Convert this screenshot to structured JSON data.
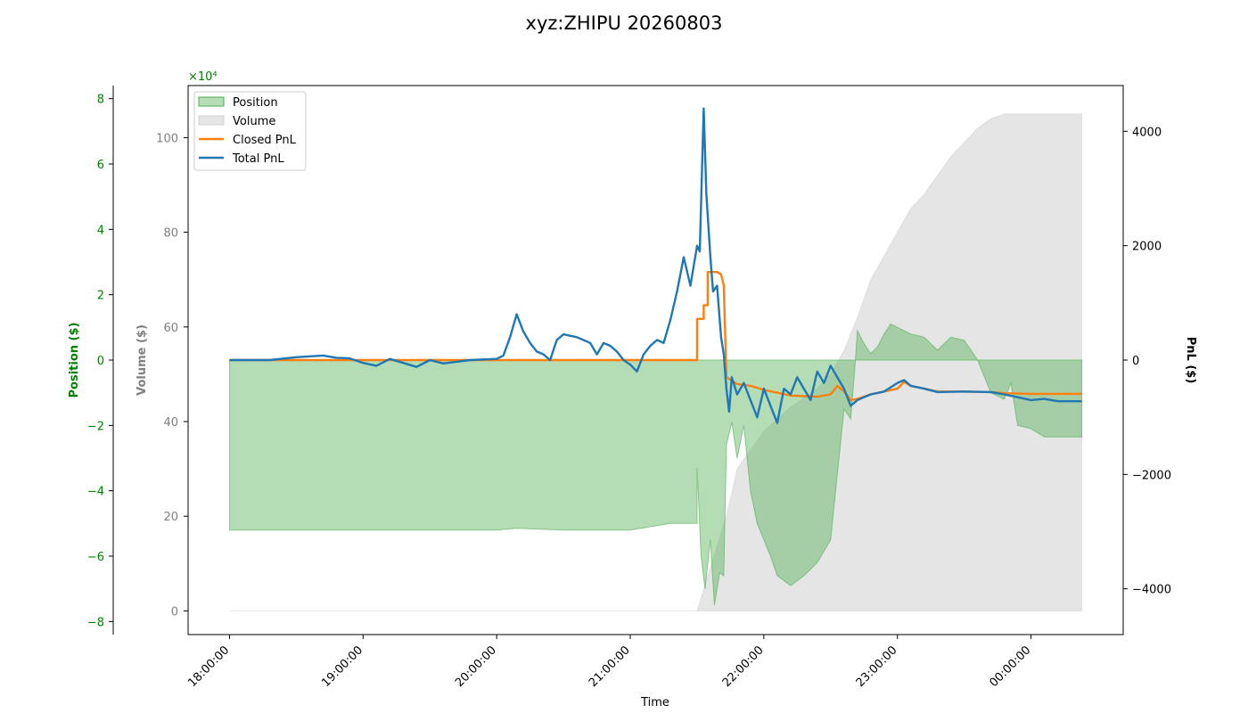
{
  "chart_data": {
    "type": "area",
    "title": "xyz:ZHIPU 20260803",
    "xlabel": "Time",
    "x_ticks": [
      "18:00:00",
      "19:00:00",
      "20:00:00",
      "21:00:00",
      "22:00:00",
      "23:00:00",
      "00:00:00"
    ],
    "x_range_hours": [
      17.69,
      24.69
    ],
    "grid": false,
    "legend_position": "top-left",
    "axes": {
      "position": {
        "label": "Position ($)",
        "color": "#008000",
        "exponent_label": "×10⁴",
        "scale": 10000,
        "range": [
          -8.4,
          8.4
        ],
        "ticks": [
          -8,
          -6,
          -4,
          -2,
          0,
          2,
          4,
          6,
          8
        ]
      },
      "volume": {
        "label": "Volume ($)",
        "color": "#808080",
        "range": [
          -5,
          111
        ],
        "ticks": [
          0,
          20,
          40,
          60,
          80,
          100
        ]
      },
      "pnl": {
        "label": "PnL ($)",
        "color": "#000000",
        "range": [
          -4800,
          4800
        ],
        "ticks": [
          -4000,
          -2000,
          0,
          2000,
          4000
        ]
      }
    },
    "series": [
      {
        "name": "Position",
        "kind": "area",
        "axis": "position",
        "color": "#4caf50",
        "points": [
          [
            18.0,
            -5.2
          ],
          [
            19.0,
            -5.2
          ],
          [
            20.0,
            -5.2
          ],
          [
            20.15,
            -5.15
          ],
          [
            20.5,
            -5.2
          ],
          [
            21.0,
            -5.2
          ],
          [
            21.3,
            -5.0
          ],
          [
            21.5,
            -5.0
          ],
          [
            21.5,
            -3.3
          ],
          [
            21.53,
            -6.0
          ],
          [
            21.56,
            -7.0
          ],
          [
            21.6,
            -5.5
          ],
          [
            21.63,
            -7.5
          ],
          [
            21.67,
            -6.5
          ],
          [
            21.7,
            -6.6
          ],
          [
            21.72,
            -2.6
          ],
          [
            21.76,
            -1.9
          ],
          [
            21.8,
            -3.0
          ],
          [
            21.85,
            -2.0
          ],
          [
            21.9,
            -4.0
          ],
          [
            21.95,
            -5.0
          ],
          [
            22.0,
            -5.5
          ],
          [
            22.05,
            -6.0
          ],
          [
            22.1,
            -6.6
          ],
          [
            22.2,
            -6.9
          ],
          [
            22.3,
            -6.6
          ],
          [
            22.4,
            -6.2
          ],
          [
            22.5,
            -5.5
          ],
          [
            22.55,
            -3.5
          ],
          [
            22.6,
            -1.5
          ],
          [
            22.65,
            -1.8
          ],
          [
            22.68,
            -0.3
          ],
          [
            22.7,
            0.9
          ],
          [
            22.75,
            0.5
          ],
          [
            22.8,
            0.2
          ],
          [
            22.85,
            0.4
          ],
          [
            22.9,
            0.8
          ],
          [
            22.95,
            1.1
          ],
          [
            23.0,
            1.0
          ],
          [
            23.1,
            0.8
          ],
          [
            23.2,
            0.7
          ],
          [
            23.3,
            0.3
          ],
          [
            23.4,
            0.7
          ],
          [
            23.5,
            0.6
          ],
          [
            23.6,
            0.0
          ],
          [
            23.7,
            -1.0
          ],
          [
            23.8,
            -1.2
          ],
          [
            23.85,
            -0.7
          ],
          [
            23.9,
            -2.0
          ],
          [
            24.0,
            -2.1
          ],
          [
            24.1,
            -2.35
          ],
          [
            24.38,
            -2.35
          ]
        ]
      },
      {
        "name": "Volume",
        "kind": "area",
        "axis": "volume",
        "color": "#d3d3d3",
        "points": [
          [
            18.0,
            0
          ],
          [
            21.5,
            0
          ],
          [
            21.72,
            20
          ],
          [
            21.8,
            30
          ],
          [
            22.0,
            38
          ],
          [
            22.2,
            43
          ],
          [
            22.4,
            47
          ],
          [
            22.5,
            50
          ],
          [
            22.6,
            55
          ],
          [
            22.7,
            62
          ],
          [
            22.8,
            70
          ],
          [
            22.9,
            75
          ],
          [
            23.0,
            80
          ],
          [
            23.1,
            85
          ],
          [
            23.2,
            88
          ],
          [
            23.3,
            92
          ],
          [
            23.4,
            96
          ],
          [
            23.5,
            99
          ],
          [
            23.6,
            102
          ],
          [
            23.7,
            104
          ],
          [
            23.8,
            105
          ],
          [
            24.38,
            105
          ]
        ]
      },
      {
        "name": "Closed PnL",
        "kind": "line",
        "axis": "pnl",
        "color": "#ff7f0e",
        "points": [
          [
            18.0,
            0
          ],
          [
            21.5,
            0
          ],
          [
            21.5,
            720
          ],
          [
            21.55,
            720
          ],
          [
            21.55,
            960
          ],
          [
            21.58,
            960
          ],
          [
            21.58,
            1540
          ],
          [
            21.65,
            1540
          ],
          [
            21.68,
            1500
          ],
          [
            21.7,
            1300
          ],
          [
            21.72,
            -300
          ],
          [
            21.8,
            -420
          ],
          [
            21.9,
            -450
          ],
          [
            22.0,
            -520
          ],
          [
            22.2,
            -620
          ],
          [
            22.4,
            -640
          ],
          [
            22.5,
            -600
          ],
          [
            22.55,
            -450
          ],
          [
            22.6,
            -550
          ],
          [
            22.65,
            -700
          ],
          [
            22.7,
            -680
          ],
          [
            22.8,
            -600
          ],
          [
            22.9,
            -550
          ],
          [
            23.0,
            -500
          ],
          [
            23.05,
            -380
          ],
          [
            23.1,
            -450
          ],
          [
            23.2,
            -500
          ],
          [
            23.3,
            -550
          ],
          [
            23.5,
            -550
          ],
          [
            23.7,
            -560
          ],
          [
            23.8,
            -580
          ],
          [
            24.0,
            -590
          ],
          [
            24.38,
            -590
          ]
        ]
      },
      {
        "name": "Total PnL",
        "kind": "line",
        "axis": "pnl",
        "color": "#1f77b4",
        "points": [
          [
            18.0,
            0
          ],
          [
            18.3,
            0
          ],
          [
            18.5,
            50
          ],
          [
            18.7,
            80
          ],
          [
            18.8,
            40
          ],
          [
            18.9,
            30
          ],
          [
            19.0,
            -50
          ],
          [
            19.1,
            -100
          ],
          [
            19.2,
            20
          ],
          [
            19.3,
            -50
          ],
          [
            19.4,
            -120
          ],
          [
            19.5,
            0
          ],
          [
            19.6,
            -60
          ],
          [
            19.8,
            0
          ],
          [
            20.0,
            20
          ],
          [
            20.05,
            80
          ],
          [
            20.1,
            400
          ],
          [
            20.15,
            800
          ],
          [
            20.2,
            500
          ],
          [
            20.25,
            300
          ],
          [
            20.3,
            150
          ],
          [
            20.35,
            100
          ],
          [
            20.4,
            0
          ],
          [
            20.45,
            350
          ],
          [
            20.5,
            450
          ],
          [
            20.6,
            400
          ],
          [
            20.7,
            300
          ],
          [
            20.75,
            100
          ],
          [
            20.8,
            300
          ],
          [
            20.85,
            250
          ],
          [
            20.9,
            150
          ],
          [
            20.95,
            0
          ],
          [
            21.0,
            -80
          ],
          [
            21.05,
            -200
          ],
          [
            21.1,
            100
          ],
          [
            21.15,
            250
          ],
          [
            21.2,
            350
          ],
          [
            21.25,
            300
          ],
          [
            21.3,
            700
          ],
          [
            21.35,
            1200
          ],
          [
            21.4,
            1800
          ],
          [
            21.45,
            1300
          ],
          [
            21.5,
            2000
          ],
          [
            21.52,
            1900
          ],
          [
            21.55,
            4400
          ],
          [
            21.57,
            2900
          ],
          [
            21.6,
            1800
          ],
          [
            21.62,
            1200
          ],
          [
            21.65,
            1300
          ],
          [
            21.68,
            400
          ],
          [
            21.7,
            100
          ],
          [
            21.72,
            -500
          ],
          [
            21.74,
            -900
          ],
          [
            21.76,
            -300
          ],
          [
            21.8,
            -600
          ],
          [
            21.85,
            -400
          ],
          [
            21.9,
            -700
          ],
          [
            21.95,
            -1000
          ],
          [
            22.0,
            -500
          ],
          [
            22.05,
            -800
          ],
          [
            22.1,
            -1100
          ],
          [
            22.15,
            -500
          ],
          [
            22.2,
            -600
          ],
          [
            22.25,
            -300
          ],
          [
            22.3,
            -500
          ],
          [
            22.35,
            -700
          ],
          [
            22.4,
            -200
          ],
          [
            22.45,
            -400
          ],
          [
            22.5,
            -100
          ],
          [
            22.55,
            -300
          ],
          [
            22.6,
            -500
          ],
          [
            22.65,
            -800
          ],
          [
            22.7,
            -700
          ],
          [
            22.75,
            -650
          ],
          [
            22.8,
            -600
          ],
          [
            22.9,
            -550
          ],
          [
            23.0,
            -400
          ],
          [
            23.05,
            -350
          ],
          [
            23.1,
            -450
          ],
          [
            23.2,
            -500
          ],
          [
            23.3,
            -560
          ],
          [
            23.5,
            -550
          ],
          [
            23.7,
            -560
          ],
          [
            23.8,
            -600
          ],
          [
            23.9,
            -650
          ],
          [
            24.0,
            -700
          ],
          [
            24.1,
            -680
          ],
          [
            24.2,
            -720
          ],
          [
            24.38,
            -720
          ]
        ]
      }
    ]
  }
}
